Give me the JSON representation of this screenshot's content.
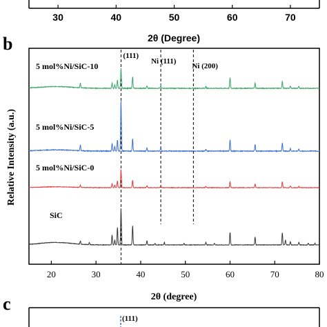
{
  "panels": {
    "top_fragment": {
      "xtick_labels": [
        "30",
        "40",
        "50",
        "60",
        "70"
      ],
      "xtick_values": [
        30,
        40,
        50,
        60,
        70
      ],
      "xlim": [
        25,
        75
      ],
      "xlabel": "2θ (Degree)"
    },
    "panel_b": {
      "label": "b",
      "ylabel": "Relative Intensity (a.u.)",
      "xlabel": "2θ (degree)"
    },
    "panel_c": {
      "label": "c",
      "peak_label": "(111)"
    }
  },
  "chart_data": {
    "type": "line",
    "title": "",
    "xlabel": "2θ (degree)",
    "ylabel": "Relative Intensity (a.u.)",
    "xlim": [
      15,
      80
    ],
    "x_ticks": [
      20,
      30,
      40,
      50,
      60,
      70,
      80
    ],
    "x_tick_labels": [
      "20",
      "30",
      "40",
      "50",
      "60",
      "70",
      "80"
    ],
    "grid": false,
    "y_tick_labels_shown": false,
    "annotations": [
      {
        "text": "(111)",
        "x": 35.6
      },
      {
        "text": "Ni (111)",
        "x": 44.5
      },
      {
        "text": "Ni (200)",
        "x": 51.8
      }
    ],
    "reference_lines_x": [
      35.6,
      44.5,
      51.8
    ],
    "peak_positions": [
      26.5,
      33.6,
      34.2,
      34.8,
      35.6,
      38.2,
      41.4,
      43.2,
      45.3,
      49.7,
      54.6,
      56.5,
      60.0,
      65.6,
      71.7,
      73.5,
      75.4,
      77.5
    ],
    "series": [
      {
        "name": "SiC",
        "color": "#333333",
        "hump": {
          "center": 21,
          "width": 5,
          "height": 6
        },
        "peaks": [
          [
            26.5,
            8
          ],
          [
            28.5,
            5
          ],
          [
            33.6,
            24
          ],
          [
            34.2,
            12
          ],
          [
            34.8,
            42
          ],
          [
            35.6,
            88
          ],
          [
            38.2,
            46
          ],
          [
            41.4,
            10
          ],
          [
            43.2,
            4
          ],
          [
            45.3,
            6
          ],
          [
            49.7,
            4
          ],
          [
            54.6,
            6
          ],
          [
            56.5,
            4
          ],
          [
            60.0,
            30
          ],
          [
            65.6,
            19
          ],
          [
            71.7,
            30
          ],
          [
            72.4,
            12
          ],
          [
            73.5,
            8
          ],
          [
            75.4,
            6
          ],
          [
            77.5,
            4
          ],
          [
            79.0,
            4
          ]
        ]
      },
      {
        "name": "5 mol%Ni/SiC-0",
        "color": "#e03b3b",
        "hump": {
          "center": 21,
          "width": 5,
          "height": 2
        },
        "peaks": [
          [
            26.5,
            5
          ],
          [
            33.6,
            10
          ],
          [
            34.2,
            6
          ],
          [
            34.8,
            16
          ],
          [
            35.6,
            44
          ],
          [
            38.2,
            18
          ],
          [
            41.4,
            5
          ],
          [
            44.5,
            5
          ],
          [
            54.6,
            3
          ],
          [
            60.0,
            14
          ],
          [
            65.6,
            9
          ],
          [
            71.7,
            14
          ],
          [
            73.5,
            4
          ],
          [
            75.4,
            3
          ]
        ]
      },
      {
        "name": "5 mol%Ni/SiC-5",
        "color": "#3a6fd1",
        "hump": {
          "center": 21,
          "width": 5,
          "height": 2
        },
        "peaks": [
          [
            26.5,
            9
          ],
          [
            33.6,
            12
          ],
          [
            34.2,
            8
          ],
          [
            34.8,
            18
          ],
          [
            35.6,
            82
          ],
          [
            38.2,
            20
          ],
          [
            41.4,
            5
          ],
          [
            44.5,
            6
          ],
          [
            54.6,
            3
          ],
          [
            60.0,
            18
          ],
          [
            65.6,
            11
          ],
          [
            71.7,
            13
          ],
          [
            73.5,
            4
          ],
          [
            75.4,
            3
          ]
        ]
      },
      {
        "name": "5 mol%Ni/SiC-10",
        "color": "#3ca56a",
        "hump": {
          "center": 21,
          "width": 5,
          "height": 3
        },
        "peaks": [
          [
            26.5,
            8
          ],
          [
            33.6,
            9
          ],
          [
            34.2,
            6
          ],
          [
            34.8,
            14
          ],
          [
            35.6,
            34
          ],
          [
            38.2,
            20
          ],
          [
            41.4,
            4
          ],
          [
            44.5,
            5
          ],
          [
            54.6,
            3
          ],
          [
            60.0,
            18
          ],
          [
            65.6,
            9
          ],
          [
            71.7,
            12
          ],
          [
            73.5,
            4
          ],
          [
            75.4,
            3
          ]
        ]
      }
    ]
  }
}
